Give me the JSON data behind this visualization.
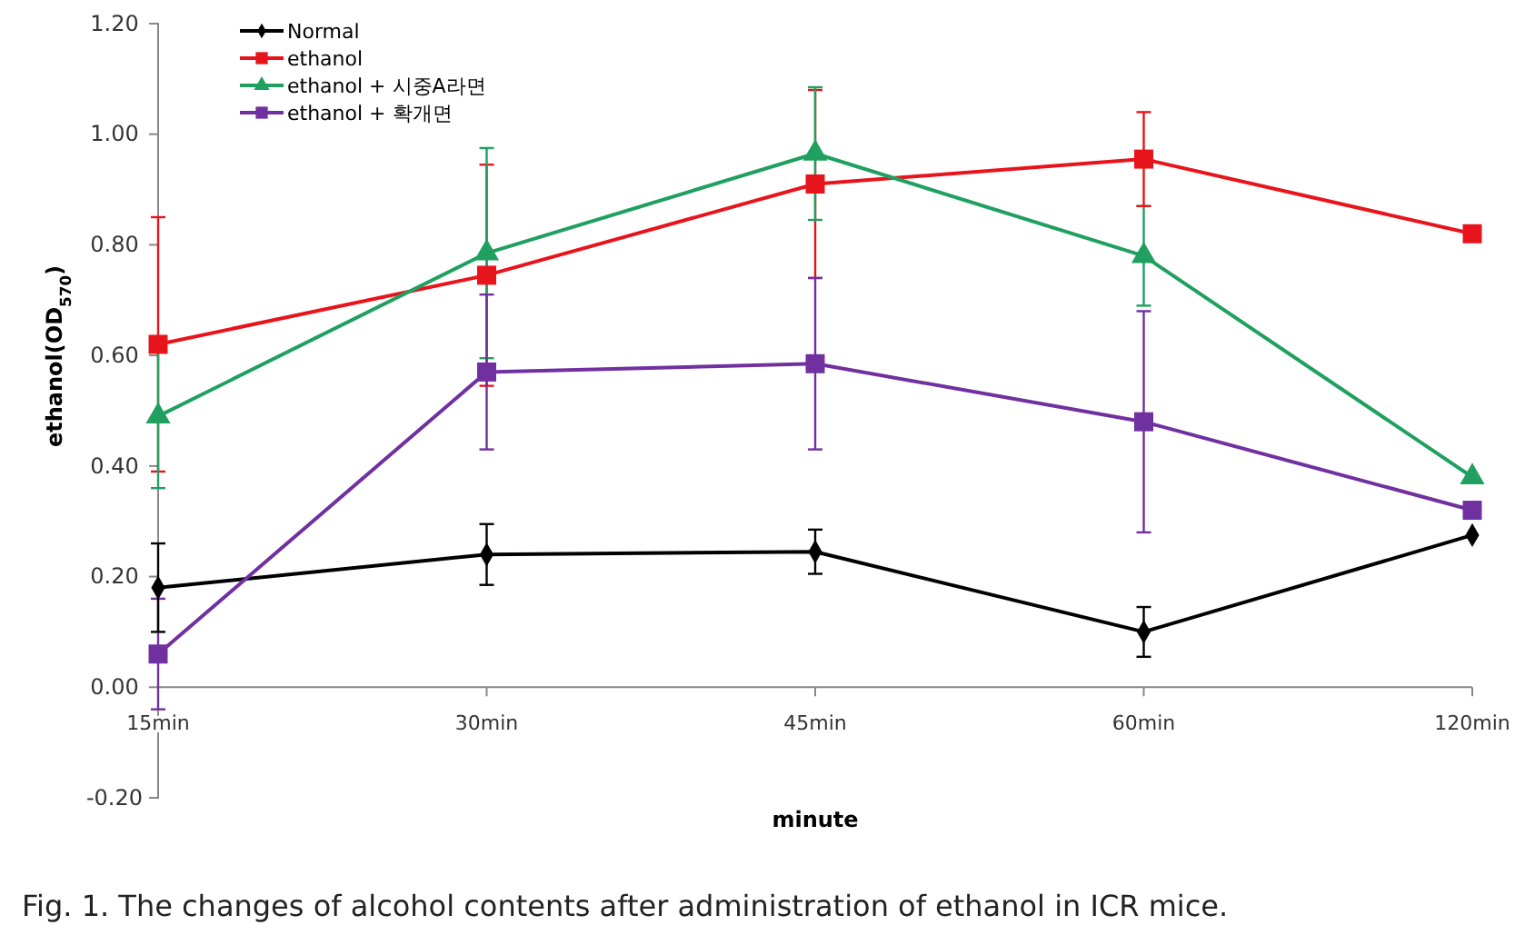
{
  "chart_data": {
    "type": "line",
    "xlabel": "minute",
    "ylabel": "ethanol(OD$_{570}$)",
    "categories": [
      "15min",
      "30min",
      "45min",
      "60min",
      "120min"
    ],
    "ylim": [
      -0.2,
      1.2
    ],
    "yticks": [
      {
        "value": -0.2,
        "label": "-0.20"
      },
      {
        "value": 0,
        "label": "0.00"
      },
      {
        "value": 0.2,
        "label": "0.20"
      },
      {
        "value": 0.4,
        "label": "0.40"
      },
      {
        "value": 0.6,
        "label": "0.60"
      },
      {
        "value": 0.8,
        "label": "0.80"
      },
      {
        "value": 1,
        "label": "1.00"
      },
      {
        "value": 1.2,
        "label": "1.20"
      }
    ],
    "grid": false,
    "legend": "top left",
    "series": [
      {
        "name": "Normal",
        "color": "#000000",
        "marker": "diamond",
        "values": [
          0.18,
          0.24,
          0.245,
          0.1,
          0.275
        ],
        "errors": [
          0.08,
          0.055,
          0.04,
          0.045,
          null
        ]
      },
      {
        "name": "ethanol",
        "color": "#e8141c",
        "marker": "square",
        "values": [
          0.62,
          0.745,
          0.91,
          0.955,
          0.82
        ],
        "errors": [
          0.23,
          0.2,
          0.17,
          0.085,
          null
        ]
      },
      {
        "name": "ethanol + 시중A라면",
        "color": "#20a060",
        "marker": "triangle",
        "values": [
          0.49,
          0.785,
          0.965,
          0.78,
          0.38
        ],
        "errors": [
          0.13,
          0.19,
          0.12,
          0.09,
          null
        ]
      },
      {
        "name": "ethanol + 확개면",
        "color": "#7030a0",
        "marker": "square",
        "values": [
          0.06,
          0.57,
          0.585,
          0.48,
          0.32
        ],
        "errors": [
          0.1,
          0.14,
          0.155,
          0.2,
          null
        ]
      }
    ],
    "annotations": [
      "Fig. 1. The changes of alcohol contents after administration of ethanol in ICR mice."
    ]
  }
}
